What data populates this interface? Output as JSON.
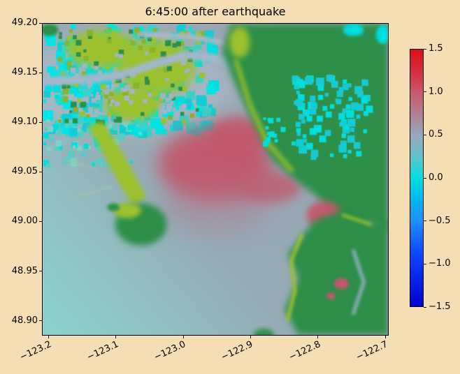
{
  "figure": {
    "title": "6:45:00 after earthquake",
    "background_color": "#f5deb3"
  },
  "chart_data": {
    "type": "heatmap",
    "title": "6:45:00 after earthquake",
    "xlabel": "",
    "ylabel": "",
    "content_summary": "Coastal raster map: dark-green and yellow-green land masses, cyan/gray water surface, red region of elevated water in the central bay; colorbar shows values from -1.5 to 1.5.",
    "x_axis": {
      "tick_labels": [
        "−123.2",
        "−123.1",
        "−123.0",
        "−122.9",
        "−122.8",
        "−122.7"
      ],
      "tick_values": [
        -123.2,
        -123.1,
        -123.0,
        -122.9,
        -122.8,
        -122.7
      ],
      "range": [
        -123.21,
        -122.695
      ],
      "tick_rotation_deg": 25
    },
    "y_axis": {
      "tick_labels": [
        "49.20",
        "49.15",
        "49.10",
        "49.05",
        "49.00",
        "48.95",
        "48.90"
      ],
      "tick_values": [
        49.2,
        49.15,
        49.1,
        49.05,
        49.0,
        48.95,
        48.9
      ],
      "range": [
        48.885,
        49.2
      ]
    },
    "colorbar": {
      "range": [
        -1.5,
        1.5
      ],
      "tick_labels": [
        "1.5",
        "1.0",
        "0.5",
        "0.0",
        "−0.5",
        "−1.0",
        "−1.5"
      ],
      "tick_values": [
        1.5,
        1.0,
        0.5,
        0.0,
        -0.5,
        -1.0,
        -1.5
      ],
      "gradient_stops": [
        [
          0.0,
          "#e01010"
        ],
        [
          0.08,
          "#d62b38"
        ],
        [
          0.167,
          "#c9586c"
        ],
        [
          0.25,
          "#b37e91"
        ],
        [
          0.333,
          "#98a8b8"
        ],
        [
          0.42,
          "#5ec3cc"
        ],
        [
          0.5,
          "#00e0e0"
        ],
        [
          0.58,
          "#00b9f0"
        ],
        [
          0.667,
          "#1e90ff"
        ],
        [
          0.8,
          "#0d45ff"
        ],
        [
          1.0,
          "#0000cd"
        ]
      ]
    },
    "map_render": {
      "water_gradient": [
        "#8bd4cb",
        "#97abb7",
        "#9aa6b4"
      ],
      "regions": [
        {
          "kind": "blob",
          "color": "#a9b9c6",
          "cx": 0.24,
          "cy": 0.2,
          "rx": 0.32,
          "ry": 0.17,
          "blur": 18,
          "alpha": 0.75
        },
        {
          "kind": "mosaic",
          "x": 0.0,
          "y": 0.0,
          "w": 0.48,
          "h": 0.34,
          "n": 300,
          "min": 5,
          "max": 16,
          "colors": [
            "#00dede",
            "#12ccd6",
            "#3bd2c8",
            "#00e6e6"
          ]
        },
        {
          "kind": "mosaic",
          "x": 0.0,
          "y": 0.3,
          "w": 0.28,
          "h": 0.15,
          "n": 70,
          "min": 4,
          "max": 10,
          "colors": [
            "#55cfc6",
            "#00dede",
            "#7fd2c8"
          ]
        },
        {
          "kind": "blob",
          "color": "#9cc22f",
          "cx": 0.17,
          "cy": 0.08,
          "rx": 0.1,
          "ry": 0.06,
          "blur": 6
        },
        {
          "kind": "blob",
          "color": "#9cc22f",
          "cx": 0.33,
          "cy": 0.14,
          "rx": 0.11,
          "ry": 0.09,
          "blur": 7
        },
        {
          "kind": "blob",
          "color": "#9cc22f",
          "cx": 0.26,
          "cy": 0.26,
          "rx": 0.08,
          "ry": 0.05,
          "blur": 5
        },
        {
          "kind": "blob",
          "color": "#2e8f49",
          "cx": 0.02,
          "cy": 0.02,
          "rx": 0.025,
          "ry": 0.02,
          "blur": 2
        },
        {
          "kind": "mosaic",
          "x": 0.04,
          "y": 0.01,
          "w": 0.42,
          "h": 0.3,
          "n": 120,
          "min": 4,
          "max": 9,
          "colors": [
            "#9cc22f",
            "#8ab32a",
            "#2e8f49"
          ]
        },
        {
          "kind": "mosaic",
          "x": 0.08,
          "y": 0.08,
          "w": 0.36,
          "h": 0.2,
          "n": 45,
          "min": 4,
          "max": 8,
          "colors": [
            "#a4b6c6"
          ]
        },
        {
          "kind": "stroke",
          "color": "#a2b7ca",
          "width": 12,
          "blur": 2,
          "pts": [
            [
              0,
              0.185
            ],
            [
              0.1,
              0.18
            ],
            [
              0.22,
              0.168
            ],
            [
              0.33,
              0.127
            ],
            [
              0.42,
              0.1
            ],
            [
              0.5,
              0.112
            ],
            [
              0.56,
              0.142
            ]
          ]
        },
        {
          "kind": "stroke",
          "color": "#aab8c6",
          "width": 7,
          "blur": 2,
          "pts": [
            [
              0.28,
              0.035
            ],
            [
              0.42,
              0.04
            ],
            [
              0.52,
              0.06
            ]
          ]
        },
        {
          "kind": "blob",
          "color": "#c4566a",
          "cx": 0.5,
          "cy": 0.45,
          "rx": 0.165,
          "ry": 0.12,
          "blur": 13,
          "alpha": 0.92
        },
        {
          "kind": "blob",
          "color": "#c4566a",
          "cx": 0.57,
          "cy": 0.36,
          "rx": 0.09,
          "ry": 0.06,
          "blur": 9,
          "alpha": 0.9
        },
        {
          "kind": "blob",
          "color": "#c05f72",
          "cx": 0.655,
          "cy": 0.525,
          "rx": 0.095,
          "ry": 0.05,
          "blur": 8,
          "alpha": 0.85
        },
        {
          "kind": "blob",
          "color": "#bb6a80",
          "cx": 0.5,
          "cy": 0.58,
          "rx": 0.16,
          "ry": 0.09,
          "blur": 18,
          "alpha": 0.35
        },
        {
          "kind": "poly",
          "color": "#2e8f49",
          "blur": 5,
          "pts": [
            [
              0.545,
              0
            ],
            [
              1,
              0
            ],
            [
              1,
              0.66
            ],
            [
              0.93,
              0.68
            ],
            [
              0.85,
              0.63
            ],
            [
              0.8,
              0.56
            ],
            [
              0.73,
              0.5
            ],
            [
              0.66,
              0.43
            ],
            [
              0.61,
              0.32
            ],
            [
              0.56,
              0.2
            ],
            [
              0.52,
              0.09
            ]
          ]
        },
        {
          "kind": "stroke",
          "color": "#9cc22f",
          "width": 6,
          "blur": 3,
          "pts": [
            [
              0.56,
              0.12
            ],
            [
              0.6,
              0.26
            ],
            [
              0.65,
              0.38
            ],
            [
              0.72,
              0.47
            ]
          ]
        },
        {
          "kind": "blob",
          "color": "#9cc22f",
          "cx": 0.57,
          "cy": 0.06,
          "rx": 0.03,
          "ry": 0.05,
          "blur": 4
        },
        {
          "kind": "mosaic",
          "x": 0.72,
          "y": 0.16,
          "w": 0.22,
          "h": 0.26,
          "n": 90,
          "min": 5,
          "max": 12,
          "colors": [
            "#00dede",
            "#17c9d2"
          ]
        },
        {
          "kind": "mosaic",
          "x": 0.62,
          "y": 0.3,
          "w": 0.08,
          "h": 0.08,
          "n": 14,
          "min": 4,
          "max": 8,
          "colors": [
            "#00dede"
          ]
        },
        {
          "kind": "blob",
          "color": "#00dede",
          "cx": 0.9,
          "cy": 0.02,
          "rx": 0.03,
          "ry": 0.02,
          "blur": 2
        },
        {
          "kind": "blob",
          "color": "#00dede",
          "cx": 0.985,
          "cy": 0.035,
          "rx": 0.02,
          "ry": 0.03,
          "blur": 2
        },
        {
          "kind": "blob",
          "color": "#c4566a",
          "cx": 0.815,
          "cy": 0.615,
          "rx": 0.05,
          "ry": 0.045,
          "blur": 5,
          "alpha": 0.95
        },
        {
          "kind": "blob",
          "color": "#93a9b8",
          "cx": 0.93,
          "cy": 0.675,
          "rx": 0.06,
          "ry": 0.035,
          "blur": 5
        },
        {
          "kind": "poly",
          "color": "#9cc22f",
          "blur": 3,
          "pts": [
            [
              0.13,
              0.325
            ],
            [
              0.175,
              0.315
            ],
            [
              0.24,
              0.43
            ],
            [
              0.3,
              0.555
            ],
            [
              0.26,
              0.585
            ],
            [
              0.2,
              0.47
            ]
          ]
        },
        {
          "kind": "stroke",
          "color": "#9fbdb2",
          "width": 3,
          "blur": 1,
          "pts": [
            [
              0.095,
              0.555
            ],
            [
              0.2,
              0.525
            ]
          ]
        },
        {
          "kind": "stroke",
          "color": "#9fbdb2",
          "width": 2,
          "blur": 1,
          "pts": [
            [
              0.06,
              0.435
            ],
            [
              0.16,
              0.47
            ]
          ]
        },
        {
          "kind": "blob",
          "color": "#2e8f49",
          "cx": 0.285,
          "cy": 0.645,
          "rx": 0.075,
          "ry": 0.068,
          "blur": 4
        },
        {
          "kind": "blob",
          "color": "#9cc22f",
          "cx": 0.245,
          "cy": 0.6,
          "rx": 0.04,
          "ry": 0.025,
          "blur": 3
        },
        {
          "kind": "blob",
          "color": "#2e8f49",
          "cx": 0.205,
          "cy": 0.59,
          "rx": 0.018,
          "ry": 0.013,
          "blur": 2
        },
        {
          "kind": "poly",
          "color": "#2e8f49",
          "blur": 5,
          "pts": [
            [
              0.79,
              0.63
            ],
            [
              0.87,
              0.6
            ],
            [
              0.95,
              0.64
            ],
            [
              1,
              0.63
            ],
            [
              1,
              1
            ],
            [
              0.74,
              1
            ],
            [
              0.7,
              0.92
            ],
            [
              0.74,
              0.82
            ],
            [
              0.71,
              0.74
            ],
            [
              0.76,
              0.67
            ]
          ]
        },
        {
          "kind": "stroke",
          "color": "#9cc22f",
          "width": 5,
          "blur": 2,
          "pts": [
            [
              0.75,
              0.68
            ],
            [
              0.72,
              0.76
            ],
            [
              0.73,
              0.86
            ],
            [
              0.71,
              0.95
            ]
          ]
        },
        {
          "kind": "stroke",
          "color": "#9cc22f",
          "width": 4,
          "blur": 2,
          "pts": [
            [
              0.87,
              0.615
            ],
            [
              0.95,
              0.645
            ]
          ]
        },
        {
          "kind": "stroke",
          "color": "#8fb0bf",
          "width": 5,
          "blur": 2,
          "pts": [
            [
              0.9,
              0.73
            ],
            [
              0.93,
              0.83
            ],
            [
              0.9,
              0.93
            ]
          ]
        },
        {
          "kind": "blob",
          "color": "#c4566a",
          "cx": 0.865,
          "cy": 0.835,
          "rx": 0.022,
          "ry": 0.018,
          "blur": 2
        },
        {
          "kind": "blob",
          "color": "#c25a6e",
          "cx": 0.835,
          "cy": 0.875,
          "rx": 0.013,
          "ry": 0.011,
          "blur": 2
        },
        {
          "kind": "blob",
          "color": "#2e8f49",
          "cx": 0.64,
          "cy": 1.0,
          "rx": 0.03,
          "ry": 0.02,
          "blur": 3
        }
      ]
    }
  }
}
